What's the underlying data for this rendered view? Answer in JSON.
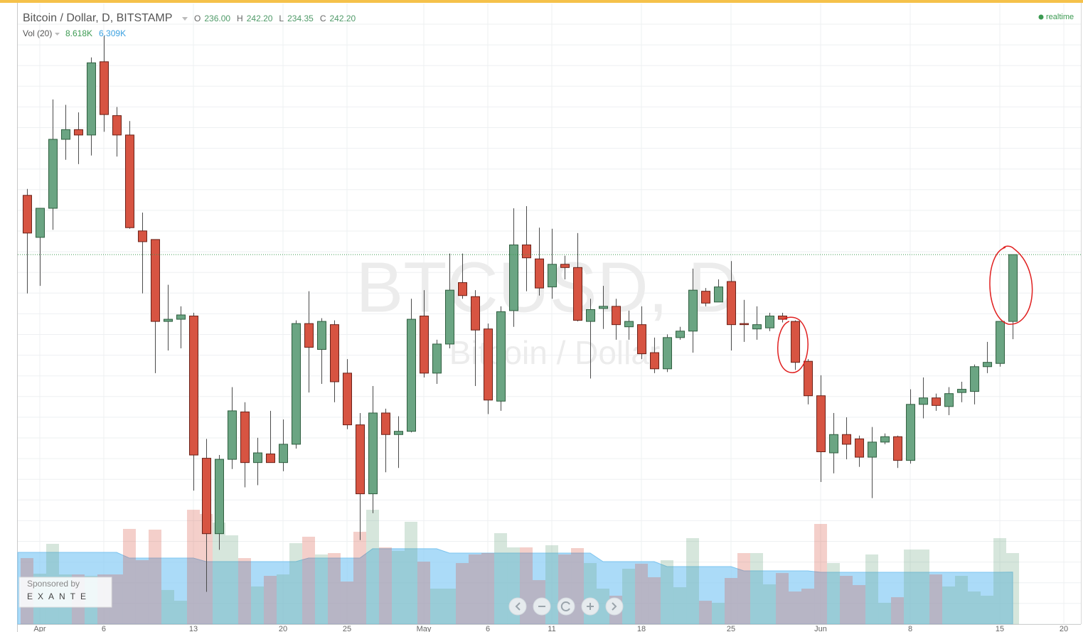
{
  "chart_data": {
    "type": "candlestick",
    "title": "Bitcoin / Dollar, D, BITSTAMP",
    "watermark": "BTCUSD, D",
    "watermark_subtitle": "Bitcoin / Dollar",
    "status": "realtime",
    "sponsor_label": "Sponsored by",
    "sponsor_name": "EXANTE",
    "up_color": "#6ba583",
    "down_color": "#d75442",
    "ohlc_legend": {
      "names": [
        "O",
        "H",
        "L",
        "C"
      ],
      "values": [
        236.0,
        242.2,
        234.35,
        242.2
      ],
      "value_labels": [
        "236.00",
        "242.20",
        "234.35",
        "242.20"
      ]
    },
    "open": [
      247.7,
      243.8,
      246.5,
      252.9,
      253.8,
      253.3,
      260.1,
      255.1,
      253.3,
      244.4,
      243.6,
      236.0,
      236.2,
      236.5,
      223.3,
      216.3,
      223.2,
      227.6,
      222.9,
      223.7,
      222.9,
      224.6,
      235.8,
      233.4,
      235.7,
      231.2,
      226.4,
      220.0,
      227.5,
      225.5,
      225.8,
      236.5,
      231.2,
      233.9,
      239.6,
      238.3,
      235.3,
      228.6,
      237.0,
      243.1,
      241.8,
      239.2,
      241.3,
      241.0,
      236.0,
      237.2,
      237.4,
      235.5,
      235.7,
      233.1,
      231.6,
      234.5,
      235.1,
      238.8,
      237.8,
      239.7,
      235.8,
      235.3,
      235.4,
      236.5,
      236.0,
      232.3,
      229.1,
      223.8,
      225.5,
      225.1,
      223.4,
      224.8,
      225.3,
      223.1,
      228.3,
      228.9,
      228.1,
      229.4,
      229.5,
      231.8,
      232.1,
      236.0
    ],
    "high": [
      248.3,
      246.5,
      256.6,
      256.1,
      255.4,
      260.5,
      262.5,
      255.9,
      254.6,
      246.1,
      243.6,
      239.4,
      237.4,
      236.8,
      225.1,
      223.6,
      229.9,
      228.5,
      225.2,
      227.7,
      226.9,
      236.1,
      238.8,
      236.3,
      236.1,
      232.5,
      227.5,
      230.0,
      227.9,
      227.2,
      238.1,
      238.9,
      234.3,
      242.3,
      242.3,
      238.9,
      235.8,
      237.4,
      246.5,
      246.7,
      244.7,
      244.6,
      242.1,
      244.2,
      238.1,
      239.3,
      238.1,
      237.0,
      237.4,
      234.5,
      234.8,
      235.5,
      240.9,
      239.1,
      239.9,
      241.6,
      238.0,
      237.4,
      236.8,
      236.8,
      236.1,
      232.5,
      231.0,
      227.5,
      227.1,
      225.4,
      226.2,
      225.6,
      225.4,
      229.7,
      230.8,
      229.3,
      229.9,
      230.4,
      232.0,
      234.1,
      236.0,
      242.2
    ],
    "low": [
      238.6,
      239.3,
      244.5,
      251.0,
      250.6,
      251.4,
      253.6,
      251.3,
      244.6,
      238.6,
      231.2,
      233.3,
      233.5,
      220.3,
      210.9,
      214.8,
      222.3,
      220.6,
      220.8,
      222.9,
      222.1,
      224.2,
      229.4,
      230.2,
      228.5,
      226.0,
      215.7,
      218.2,
      222.0,
      222.4,
      225.7,
      230.8,
      230.2,
      233.5,
      238.1,
      230.0,
      227.4,
      227.7,
      235.5,
      238.8,
      238.4,
      238.1,
      239.9,
      236.0,
      230.7,
      235.3,
      234.3,
      234.3,
      232.5,
      231.2,
      231.3,
      234.3,
      233.1,
      237.4,
      237.8,
      233.3,
      234.1,
      234.3,
      235.1,
      235.9,
      231.5,
      228.3,
      221.1,
      221.9,
      223.2,
      222.5,
      219.6,
      224.6,
      222.4,
      222.8,
      227.0,
      227.7,
      227.3,
      228.5,
      228.3,
      231.2,
      231.8,
      234.35
    ],
    "close": [
      244.2,
      246.5,
      252.9,
      253.8,
      253.3,
      260.0,
      255.2,
      253.3,
      244.7,
      243.4,
      236.0,
      236.2,
      236.6,
      223.6,
      216.3,
      223.2,
      227.7,
      222.9,
      223.8,
      222.9,
      224.6,
      235.8,
      233.6,
      236.0,
      230.4,
      226.4,
      220.0,
      227.5,
      225.5,
      225.8,
      236.2,
      231.2,
      233.9,
      238.9,
      238.4,
      235.2,
      228.7,
      236.9,
      243.1,
      241.9,
      239.1,
      241.3,
      241.0,
      236.1,
      237.1,
      237.4,
      235.7,
      236.0,
      233.0,
      231.6,
      234.5,
      235.1,
      238.9,
      237.7,
      239.2,
      235.7,
      235.7,
      235.7,
      236.5,
      236.2,
      232.2,
      229.1,
      223.9,
      225.5,
      224.6,
      223.4,
      224.8,
      225.3,
      223.1,
      228.3,
      228.9,
      228.2,
      229.3,
      229.7,
      231.8,
      232.2,
      236.0,
      242.2
    ],
    "ylim": [
      207.9,
      265.5
    ],
    "xlim": [
      -0.72,
      82.33
    ],
    "xticks": [
      {
        "value": 1,
        "label": "Apr"
      },
      {
        "value": 6,
        "label": "6"
      },
      {
        "value": 13,
        "label": "13"
      },
      {
        "value": 20,
        "label": "20"
      },
      {
        "value": 25,
        "label": "25"
      },
      {
        "value": 31,
        "label": "May"
      },
      {
        "value": 36,
        "label": "6"
      },
      {
        "value": 41,
        "label": "11"
      },
      {
        "value": 48,
        "label": "18"
      },
      {
        "value": 55,
        "label": "25"
      },
      {
        "value": 62,
        "label": "Jun"
      },
      {
        "value": 69,
        "label": "8"
      },
      {
        "value": 76,
        "label": "15"
      },
      {
        "value": 81,
        "label": "20"
      }
    ],
    "volume": {
      "values": [
        8010,
        6120,
        9740,
        6030,
        6030,
        5860,
        6030,
        6030,
        11550,
        7760,
        11460,
        4140,
        2840,
        13870,
        13360,
        12320,
        10770,
        8010,
        4570,
        5860,
        6030,
        9820,
        10600,
        8450,
        8620,
        5170,
        11200,
        13870,
        9310,
        8880,
        12410,
        7580,
        4310,
        4310,
        7410,
        8450,
        8620,
        11030,
        9310,
        9310,
        5340,
        9570,
        8450,
        9220,
        7410,
        4310,
        3450,
        6720,
        7330,
        5690,
        7760,
        4480,
        10430,
        2840,
        2590,
        5600,
        8620,
        8620,
        4830,
        6200,
        3960,
        4310,
        12150,
        7410,
        5860,
        4740,
        8450,
        2590,
        3270,
        9050,
        9050,
        6030,
        4570,
        5860,
        3960,
        3450,
        10430,
        8618
      ],
      "ma": [
        8700,
        8700,
        8700,
        8700,
        8700,
        8700,
        8700,
        8700,
        8010,
        8010,
        8010,
        8010,
        8010,
        8010,
        7580,
        7580,
        7580,
        7580,
        7580,
        7580,
        7580,
        7580,
        8010,
        8010,
        8010,
        8010,
        8010,
        9140,
        9140,
        9140,
        9140,
        9140,
        9140,
        8620,
        8620,
        8620,
        8620,
        8620,
        8620,
        8620,
        8620,
        8620,
        8620,
        8620,
        8620,
        7580,
        7580,
        7580,
        7580,
        7580,
        6980,
        6980,
        6980,
        6980,
        6980,
        6980,
        6460,
        6460,
        6460,
        6460,
        6460,
        6460,
        6290,
        6290,
        6290,
        6290,
        6290,
        6290,
        6290,
        6290,
        6290,
        6290,
        6290,
        6290,
        6290,
        6290,
        6290,
        6309
      ],
      "ylim": [
        0,
        75230
      ],
      "ma_color": "#8fcff5"
    },
    "volume_legend": {
      "name": "Vol (20)",
      "values": [
        8618,
        6309
      ],
      "value_labels": [
        "8.618K",
        "6.309K"
      ],
      "colors": [
        "#3c9a52",
        "#3aa0e0"
      ]
    }
  }
}
